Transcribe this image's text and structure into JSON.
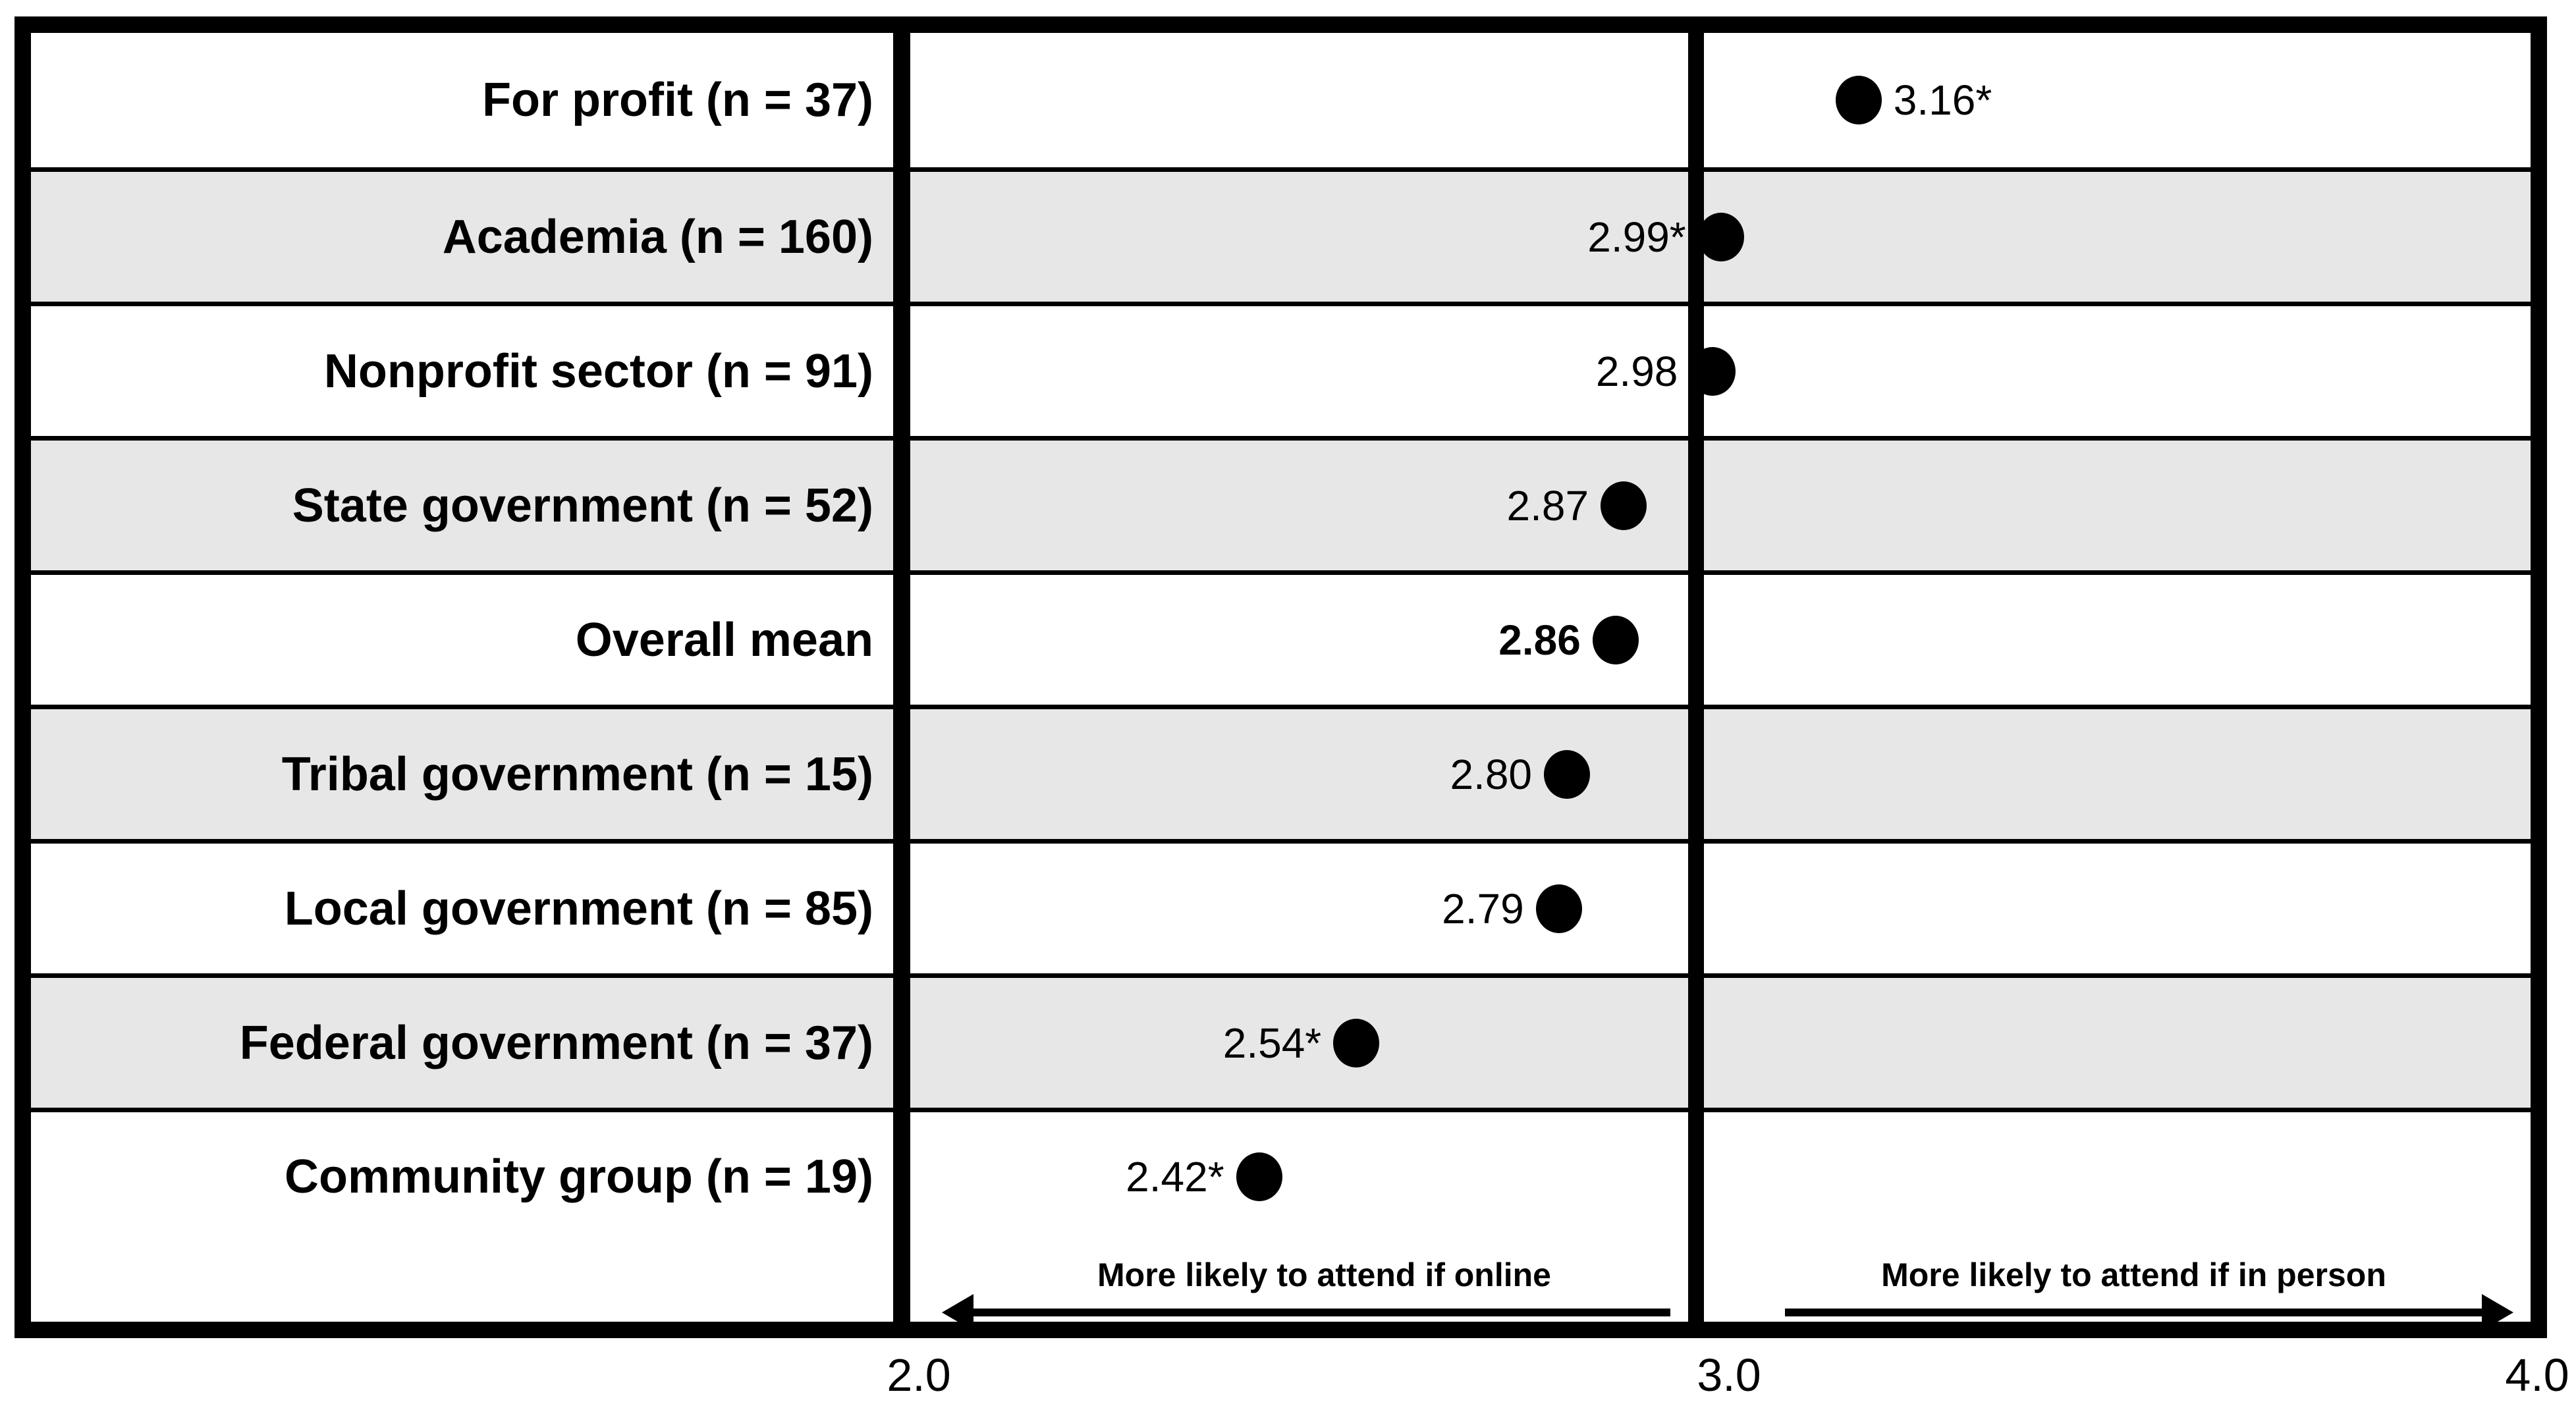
{
  "chart_data": {
    "type": "scatter",
    "subtype": "horizontal-dot-plot-table",
    "title": "",
    "categories": [
      "For profit (n = 37)",
      "Academia (n = 160)",
      "Nonprofit sector (n = 91)",
      "State government (n = 52)",
      "Overall mean",
      "Tribal government (n = 15)",
      "Local government (n = 85)",
      "Federal government (n = 37)",
      "Community group (n = 19)"
    ],
    "values": [
      3.16,
      2.99,
      2.98,
      2.87,
      2.86,
      2.8,
      2.79,
      2.54,
      2.42
    ],
    "value_labels": [
      "3.16*",
      "2.99*",
      "2.98",
      "2.87",
      "2.86",
      "2.80",
      "2.79",
      "2.54*",
      "2.42*"
    ],
    "value_label_bold": [
      false,
      false,
      false,
      false,
      true,
      false,
      false,
      false,
      false
    ],
    "emphasized_category": "Overall mean",
    "xlim": [
      2.0,
      4.0
    ],
    "x_ticks": [
      "2.0",
      "3.0",
      "4.0"
    ],
    "x_tick_values": [
      2.0,
      3.0,
      4.0
    ],
    "reference_line_x": 3.0,
    "grid": "off",
    "legend": "none",
    "row_stripe_colors": [
      "#ffffff",
      "#e7e7e7"
    ],
    "dot_color": "#000000",
    "border_color": "#000000",
    "annotations": {
      "left_arrow_label": "More likely to attend if online",
      "right_arrow_label": "More likely to attend if in person"
    }
  }
}
